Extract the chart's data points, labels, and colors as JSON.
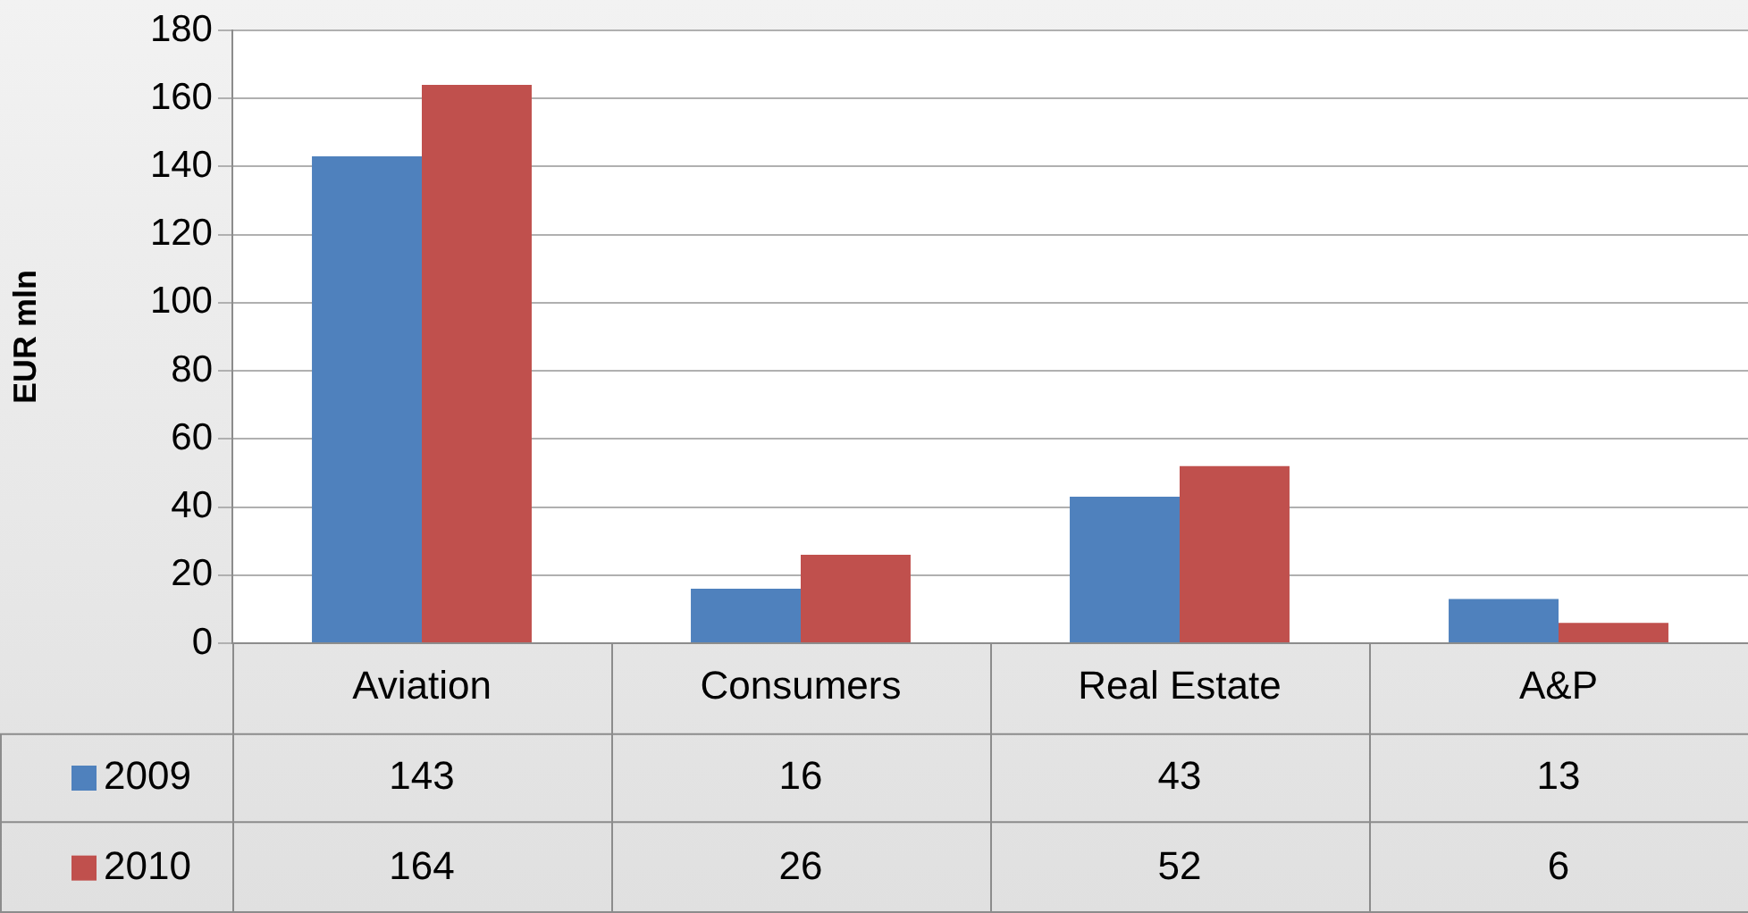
{
  "chart_data": {
    "type": "bar",
    "ylabel": "EUR mln",
    "categories": [
      "Aviation",
      "Consumers",
      "Real Estate",
      "A&P"
    ],
    "series": [
      {
        "name": "2009",
        "color": "#4f81bd",
        "values": [
          143,
          16,
          43,
          13
        ]
      },
      {
        "name": "2010",
        "color": "#c0504d",
        "values": [
          164,
          26,
          52,
          6
        ]
      }
    ],
    "ylim": [
      0,
      180
    ],
    "yticks": [
      0,
      20,
      40,
      60,
      80,
      100,
      120,
      140,
      160,
      180
    ],
    "grid": "y",
    "legend": "bottom",
    "data_labels": true
  }
}
